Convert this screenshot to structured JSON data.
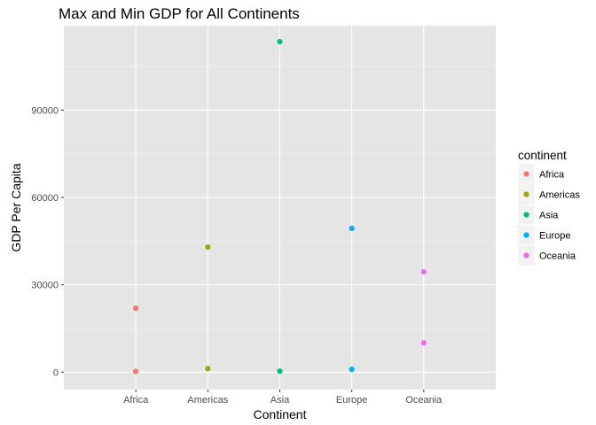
{
  "chart_data": {
    "type": "scatter",
    "title": "Max and Min GDP for All Continents",
    "xlabel": "Continent",
    "ylabel": "GDP Per Capita",
    "categories": [
      "Africa",
      "Americas",
      "Asia",
      "Europe",
      "Oceania"
    ],
    "ylim": [
      -6000,
      119000
    ],
    "yticks": [
      0,
      30000,
      60000,
      90000
    ],
    "ytick_labels": [
      "0",
      "30000",
      "60000",
      "90000"
    ],
    "grid": true,
    "legend": {
      "title": "continent",
      "placement": "right",
      "entries": [
        "Africa",
        "Americas",
        "Asia",
        "Europe",
        "Oceania"
      ]
    },
    "series": [
      {
        "name": "Africa",
        "color": "#F8766D",
        "points": [
          {
            "x": "Africa",
            "y": 21951
          },
          {
            "x": "Africa",
            "y": 241
          }
        ]
      },
      {
        "name": "Americas",
        "color": "#A3A500",
        "points": [
          {
            "x": "Americas",
            "y": 42952
          },
          {
            "x": "Americas",
            "y": 1202
          }
        ]
      },
      {
        "name": "Asia",
        "color": "#00BF7D",
        "points": [
          {
            "x": "Asia",
            "y": 113523
          },
          {
            "x": "Asia",
            "y": 331
          }
        ]
      },
      {
        "name": "Europe",
        "color": "#00B0F6",
        "points": [
          {
            "x": "Europe",
            "y": 49357
          },
          {
            "x": "Europe",
            "y": 974
          }
        ]
      },
      {
        "name": "Oceania",
        "color": "#E76BF3",
        "points": [
          {
            "x": "Oceania",
            "y": 34435
          },
          {
            "x": "Oceania",
            "y": 10040
          }
        ]
      }
    ]
  },
  "colors": {
    "panel_background": "#E5E5E5",
    "grid_major": "#FFFFFF",
    "grid_minor": "#F2F2F2"
  }
}
